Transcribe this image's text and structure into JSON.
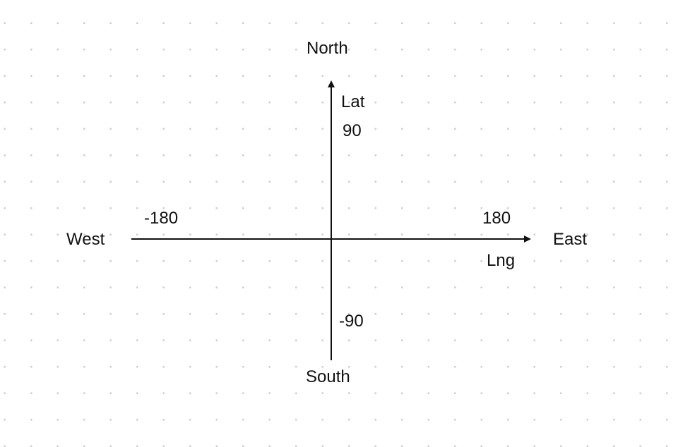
{
  "diagram": {
    "directions": {
      "north": "North",
      "south": "South",
      "west": "West",
      "east": "East"
    },
    "axes": {
      "latitude": {
        "label": "Lat",
        "max_label": "90",
        "min_label": "-90"
      },
      "longitude": {
        "label": "Lng",
        "min_label": "-180",
        "max_label": "180"
      }
    },
    "colors": {
      "axis": "#111111",
      "grid_dots": "#cfcfcf",
      "background": "#ffffff"
    }
  }
}
